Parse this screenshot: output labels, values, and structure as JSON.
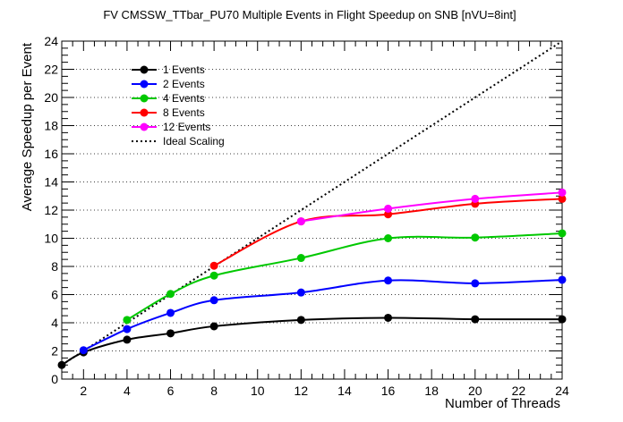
{
  "chart_data": {
    "type": "line",
    "title": "FV CMSSW_TTbar_PU70 Multiple Events in Flight Speedup on SNB [nVU=8int]",
    "xlabel": "Number of Threads",
    "ylabel": "Average Speedup per Event",
    "xlim": [
      1,
      24
    ],
    "ylim": [
      0,
      24
    ],
    "x_ticks": [
      2,
      4,
      6,
      8,
      10,
      12,
      14,
      16,
      18,
      20,
      22,
      24
    ],
    "y_ticks": [
      0,
      2,
      4,
      6,
      8,
      10,
      12,
      14,
      16,
      18,
      20,
      22,
      24
    ],
    "grid": "horizontal dotted",
    "legend_position": "top-left",
    "series": [
      {
        "name": "1 Events",
        "color": "#000000",
        "x": [
          1,
          2,
          4,
          6,
          8,
          12,
          16,
          20,
          24
        ],
        "values": [
          1.0,
          1.9,
          2.8,
          3.25,
          3.75,
          4.2,
          4.35,
          4.25,
          4.25
        ]
      },
      {
        "name": "2 Events",
        "color": "#0000ff",
        "x": [
          2,
          4,
          6,
          8,
          12,
          16,
          20,
          24
        ],
        "values": [
          2.05,
          3.55,
          4.7,
          5.6,
          6.15,
          7.0,
          6.8,
          7.05
        ]
      },
      {
        "name": "4 Events",
        "color": "#00c800",
        "x": [
          4,
          6,
          8,
          12,
          16,
          20,
          24
        ],
        "values": [
          4.2,
          6.05,
          7.35,
          8.6,
          10.0,
          10.05,
          10.35
        ]
      },
      {
        "name": "8 Events",
        "color": "#ff0000",
        "x": [
          8,
          12,
          16,
          20,
          24
        ],
        "values": [
          8.05,
          11.2,
          11.7,
          12.45,
          12.8
        ]
      },
      {
        "name": "12 Events",
        "color": "#ff00ff",
        "x": [
          12,
          16,
          20,
          24
        ],
        "values": [
          11.2,
          12.1,
          12.8,
          13.25
        ]
      }
    ],
    "ideal": {
      "name": "Ideal Scaling",
      "color": "#000000",
      "x": [
        1,
        24
      ],
      "values": [
        1,
        24
      ]
    }
  }
}
